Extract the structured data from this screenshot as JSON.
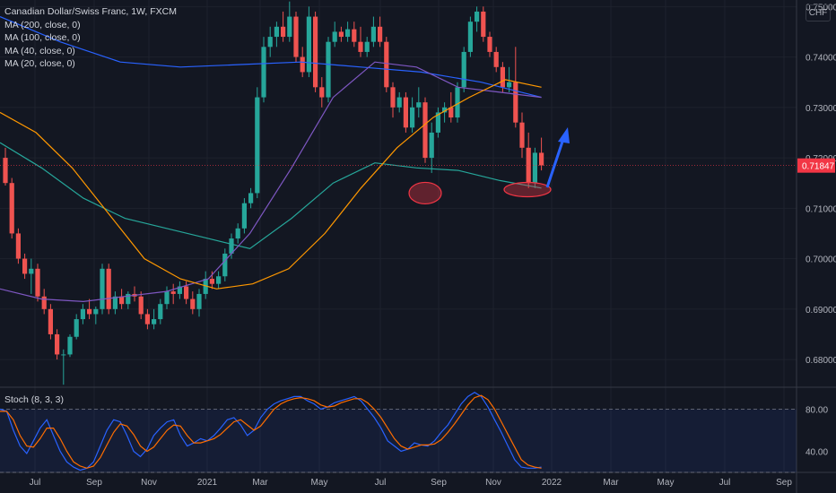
{
  "header": {
    "title": "Canadian Dollar/Swiss Franc, 1W, FXCM",
    "indicators": [
      "MA (200, close, 0)",
      "MA (100, close, 0)",
      "MA (40, close, 0)",
      "MA (20, close, 0)"
    ],
    "currency": "CHF"
  },
  "stoch_label": "Stoch (8, 3, 3)",
  "colors": {
    "background": "#131722",
    "up": "#26a69a",
    "down": "#ef5350",
    "ma200": "#2962ff",
    "ma100": "#26a69a",
    "ma40": "#7e57c2",
    "ma20": "#ff9800",
    "stoch_k": "#2962ff",
    "stoch_d": "#ff6d00",
    "price_tag": "#f23645",
    "annotation_ellipse": "#f23645",
    "arrow": "#2962ff"
  },
  "chart_data": [
    {
      "type": "candlestick",
      "title": "Canadian Dollar/Swiss Franc, 1W, FXCM",
      "xlabel": "",
      "ylabel": "CHF",
      "x_tick_labels": [
        "Jul",
        "Sep",
        "Nov",
        "2021",
        "Mar",
        "May",
        "Jul",
        "Sep",
        "Nov",
        "2022",
        "Mar",
        "May",
        "Jul",
        "Sep"
      ],
      "y_tick_labels": [
        "0.75000",
        "0.74000",
        "0.73000",
        "0.72000",
        "0.71000",
        "0.70000",
        "0.69000",
        "0.68000"
      ],
      "ylim": [
        0.6745,
        0.7513
      ],
      "last_price": "0.71847",
      "candles": [
        [
          0.72,
          0.722,
          0.7145,
          0.715
        ],
        [
          0.715,
          0.716,
          0.704,
          0.705
        ],
        [
          0.705,
          0.706,
          0.699,
          0.7
        ],
        [
          0.7,
          0.701,
          0.696,
          0.697
        ],
        [
          0.697,
          0.7,
          0.693,
          0.698
        ],
        [
          0.698,
          0.699,
          0.6915,
          0.6925
        ],
        [
          0.6925,
          0.694,
          0.689,
          0.69
        ],
        [
          0.69,
          0.691,
          0.684,
          0.685
        ],
        [
          0.685,
          0.686,
          0.68,
          0.681
        ],
        [
          0.681,
          0.682,
          0.675,
          0.681
        ],
        [
          0.681,
          0.685,
          0.6805,
          0.6845
        ],
        [
          0.6845,
          0.689,
          0.684,
          0.688
        ],
        [
          0.688,
          0.691,
          0.687,
          0.69
        ],
        [
          0.69,
          0.692,
          0.688,
          0.689
        ],
        [
          0.689,
          0.6905,
          0.687,
          0.69
        ],
        [
          0.69,
          0.699,
          0.689,
          0.698
        ],
        [
          0.698,
          0.699,
          0.689,
          0.69
        ],
        [
          0.69,
          0.6935,
          0.689,
          0.6925
        ],
        [
          0.6925,
          0.694,
          0.69,
          0.691
        ],
        [
          0.691,
          0.6935,
          0.69,
          0.693
        ],
        [
          0.693,
          0.6945,
          0.6915,
          0.6925
        ],
        [
          0.6925,
          0.6935,
          0.688,
          0.689
        ],
        [
          0.689,
          0.69,
          0.686,
          0.687
        ],
        [
          0.687,
          0.69,
          0.686,
          0.688
        ],
        [
          0.688,
          0.692,
          0.687,
          0.691
        ],
        [
          0.691,
          0.6945,
          0.69,
          0.6935
        ],
        [
          0.6935,
          0.695,
          0.691,
          0.693
        ],
        [
          0.693,
          0.6955,
          0.692,
          0.6945
        ],
        [
          0.6945,
          0.6955,
          0.691,
          0.692
        ],
        [
          0.692,
          0.6935,
          0.689,
          0.69
        ],
        [
          0.69,
          0.694,
          0.6885,
          0.693
        ],
        [
          0.693,
          0.6975,
          0.692,
          0.696
        ],
        [
          0.696,
          0.6975,
          0.694,
          0.695
        ],
        [
          0.695,
          0.6975,
          0.694,
          0.6965
        ],
        [
          0.6965,
          0.702,
          0.6955,
          0.701
        ],
        [
          0.701,
          0.705,
          0.7,
          0.704
        ],
        [
          0.704,
          0.707,
          0.703,
          0.706
        ],
        [
          0.706,
          0.712,
          0.705,
          0.711
        ],
        [
          0.711,
          0.714,
          0.71,
          0.713
        ],
        [
          0.713,
          0.734,
          0.712,
          0.732
        ],
        [
          0.732,
          0.744,
          0.731,
          0.742
        ],
        [
          0.742,
          0.746,
          0.74,
          0.744
        ],
        [
          0.744,
          0.747,
          0.742,
          0.746
        ],
        [
          0.746,
          0.749,
          0.743,
          0.744
        ],
        [
          0.744,
          0.751,
          0.743,
          0.748
        ],
        [
          0.748,
          0.749,
          0.739,
          0.74
        ],
        [
          0.74,
          0.742,
          0.736,
          0.737
        ],
        [
          0.737,
          0.75,
          0.736,
          0.748
        ],
        [
          0.748,
          0.749,
          0.733,
          0.734
        ],
        [
          0.734,
          0.736,
          0.73,
          0.732
        ],
        [
          0.732,
          0.744,
          0.731,
          0.743
        ],
        [
          0.743,
          0.747,
          0.742,
          0.745
        ],
        [
          0.745,
          0.746,
          0.743,
          0.744
        ],
        [
          0.744,
          0.747,
          0.743,
          0.7455
        ],
        [
          0.7455,
          0.747,
          0.742,
          0.743
        ],
        [
          0.743,
          0.746,
          0.74,
          0.741
        ],
        [
          0.741,
          0.744,
          0.74,
          0.743
        ],
        [
          0.743,
          0.748,
          0.742,
          0.746
        ],
        [
          0.746,
          0.748,
          0.742,
          0.743
        ],
        [
          0.743,
          0.744,
          0.733,
          0.734
        ],
        [
          0.734,
          0.735,
          0.728,
          0.73
        ],
        [
          0.73,
          0.733,
          0.729,
          0.732
        ],
        [
          0.732,
          0.733,
          0.725,
          0.726
        ],
        [
          0.726,
          0.732,
          0.725,
          0.73
        ],
        [
          0.73,
          0.734,
          0.728,
          0.731
        ],
        [
          0.731,
          0.732,
          0.719,
          0.72
        ],
        [
          0.72,
          0.727,
          0.717,
          0.725
        ],
        [
          0.725,
          0.73,
          0.724,
          0.729
        ],
        [
          0.729,
          0.731,
          0.727,
          0.73
        ],
        [
          0.73,
          0.733,
          0.727,
          0.728
        ],
        [
          0.728,
          0.735,
          0.727,
          0.734
        ],
        [
          0.734,
          0.742,
          0.733,
          0.741
        ],
        [
          0.741,
          0.748,
          0.74,
          0.747
        ],
        [
          0.747,
          0.75,
          0.745,
          0.749
        ],
        [
          0.749,
          0.75,
          0.743,
          0.744
        ],
        [
          0.744,
          0.745,
          0.74,
          0.741
        ],
        [
          0.741,
          0.742,
          0.737,
          0.738
        ],
        [
          0.738,
          0.739,
          0.733,
          0.734
        ],
        [
          0.734,
          0.738,
          0.733,
          0.735
        ],
        [
          0.735,
          0.742,
          0.726,
          0.727
        ],
        [
          0.727,
          0.729,
          0.72,
          0.722
        ],
        [
          0.722,
          0.725,
          0.714,
          0.715
        ],
        [
          0.715,
          0.722,
          0.714,
          0.721
        ],
        [
          0.721,
          0.724,
          0.7175,
          0.7185
        ]
      ],
      "moving_averages": [
        {
          "name": "MA (200, close, 0)",
          "values": [
            0.748,
            0.743,
            0.739,
            0.738,
            0.7385,
            0.739,
            0.738,
            0.737,
            0.735,
            0.732
          ]
        },
        {
          "name": "MA (100, close, 0)",
          "values": [
            0.723,
            0.718,
            0.712,
            0.708,
            0.706,
            0.704,
            0.702,
            0.708,
            0.715,
            0.719,
            0.718,
            0.7175,
            0.7155,
            0.714
          ]
        },
        {
          "name": "MA (40, close, 0)",
          "values": [
            0.694,
            0.692,
            0.6915,
            0.6925,
            0.6935,
            0.696,
            0.705,
            0.718,
            0.732,
            0.739,
            0.738,
            0.734,
            0.733,
            0.732
          ]
        },
        {
          "name": "MA (20, close, 0)",
          "values": [
            0.729,
            0.725,
            0.718,
            0.709,
            0.7,
            0.696,
            0.694,
            0.695,
            0.698,
            0.705,
            0.714,
            0.722,
            0.728,
            0.732,
            0.7355,
            0.734
          ]
        }
      ]
    },
    {
      "type": "line",
      "title": "Stoch (8, 3, 3)",
      "y_tick_labels": [
        "80.00",
        "40.00"
      ],
      "ylim": [
        20,
        100
      ],
      "levels": [
        80,
        20
      ],
      "series": [
        {
          "name": "%K",
          "values": [
            80,
            78,
            60,
            45,
            38,
            50,
            62,
            70,
            55,
            40,
            30,
            25,
            22,
            24,
            30,
            45,
            60,
            70,
            68,
            55,
            40,
            35,
            42,
            55,
            62,
            68,
            70,
            55,
            45,
            48,
            52,
            50,
            55,
            62,
            70,
            72,
            65,
            55,
            60,
            72,
            80,
            85,
            88,
            90,
            92,
            92,
            88,
            85,
            80,
            82,
            86,
            88,
            90,
            92,
            88,
            80,
            72,
            62,
            50,
            45,
            40,
            42,
            48,
            46,
            45,
            50,
            58,
            65,
            75,
            85,
            92,
            96,
            92,
            82,
            70,
            58,
            45,
            32,
            25,
            24,
            24,
            25
          ]
        },
        {
          "name": "%D",
          "values": [
            78,
            78,
            70,
            55,
            45,
            44,
            52,
            62,
            62,
            52,
            40,
            30,
            26,
            24,
            26,
            34,
            46,
            58,
            66,
            64,
            56,
            45,
            40,
            44,
            52,
            60,
            65,
            64,
            55,
            48,
            48,
            50,
            52,
            56,
            62,
            68,
            70,
            65,
            60,
            64,
            72,
            80,
            85,
            88,
            90,
            91,
            90,
            88,
            84,
            82,
            83,
            86,
            88,
            90,
            90,
            86,
            80,
            72,
            62,
            52,
            45,
            42,
            44,
            46,
            46,
            47,
            51,
            58,
            66,
            75,
            84,
            91,
            93,
            89,
            80,
            68,
            56,
            44,
            32,
            27,
            25,
            24
          ]
        }
      ]
    }
  ]
}
